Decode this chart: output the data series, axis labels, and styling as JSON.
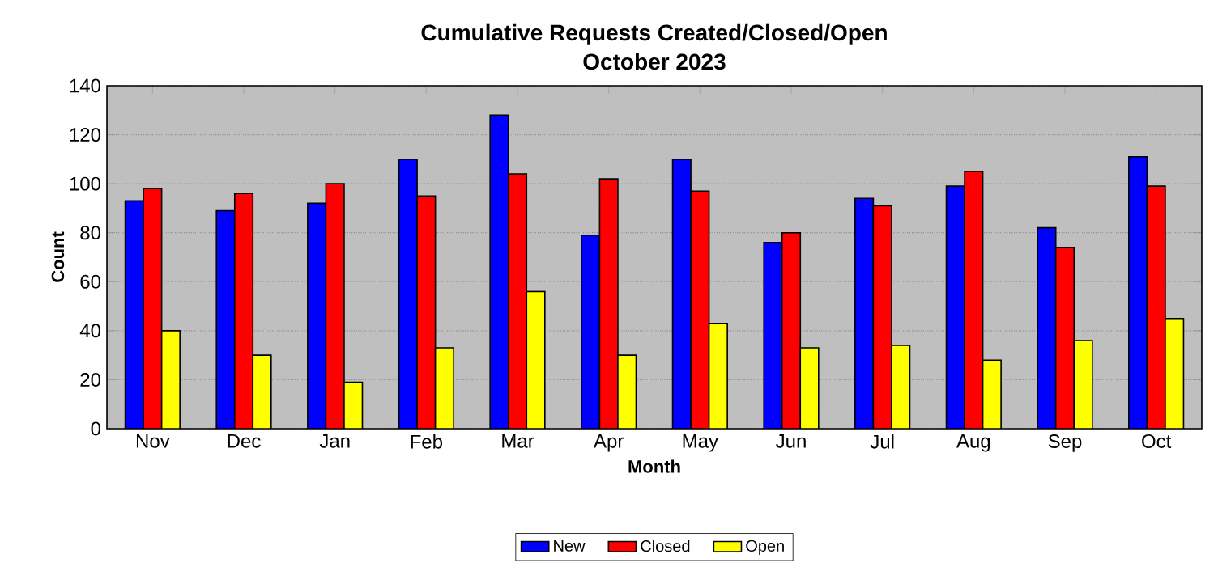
{
  "chart_data": {
    "type": "bar",
    "title": "Cumulative Requests Created/Closed/Open",
    "subtitle": "October 2023",
    "xlabel": "Month",
    "ylabel": "Count",
    "categories": [
      "Nov",
      "Dec",
      "Jan",
      "Feb",
      "Mar",
      "Apr",
      "May",
      "Jun",
      "Jul",
      "Aug",
      "Sep",
      "Oct"
    ],
    "series": [
      {
        "name": "New",
        "color": "#0000ff",
        "values": [
          93,
          89,
          92,
          110,
          128,
          79,
          110,
          76,
          94,
          99,
          82,
          111
        ]
      },
      {
        "name": "Closed",
        "color": "#ff0000",
        "values": [
          98,
          96,
          100,
          95,
          104,
          102,
          97,
          80,
          91,
          105,
          74,
          99
        ]
      },
      {
        "name": "Open",
        "color": "#ffff00",
        "values": [
          40,
          30,
          19,
          33,
          56,
          30,
          43,
          33,
          34,
          28,
          36,
          45
        ]
      }
    ],
    "ylim": [
      0,
      140
    ],
    "yticks": [
      0,
      20,
      40,
      60,
      80,
      100,
      120,
      140
    ],
    "grid": "y",
    "legend": "bottom"
  }
}
